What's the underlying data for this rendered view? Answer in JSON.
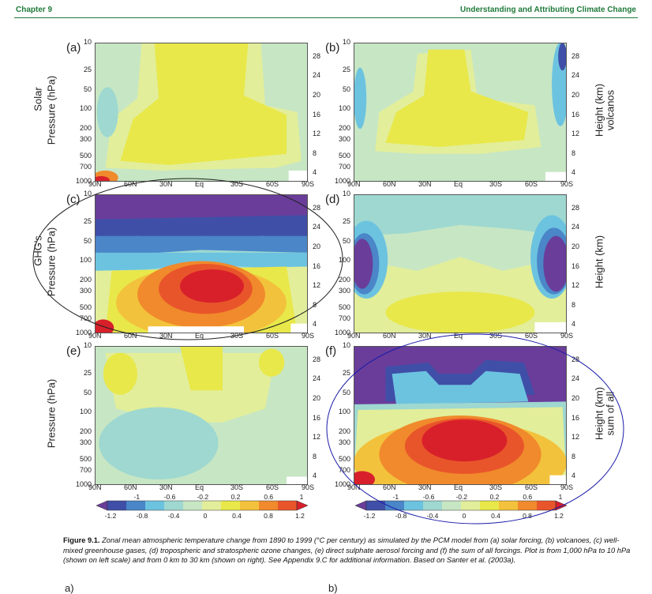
{
  "header": {
    "left": "Chapter 9",
    "right": "Understanding and Attributing Climate Change"
  },
  "panels": [
    {
      "id": "a",
      "label": "(a)",
      "left_title": "Solar",
      "left_axis": "Pressure (hPa)",
      "right_axis": "",
      "right_title": ""
    },
    {
      "id": "b",
      "label": "(b)",
      "left_title": "",
      "left_axis": "",
      "right_axis": "Height (km)",
      "right_title": "volcanos"
    },
    {
      "id": "c",
      "label": "(c)",
      "left_title": "GHG's",
      "left_axis": "Pressure (hPa)",
      "right_axis": "",
      "right_title": ""
    },
    {
      "id": "d",
      "label": "(d)",
      "left_title": "",
      "left_axis": "",
      "right_axis": "Height (km)",
      "right_title": ""
    },
    {
      "id": "e",
      "label": "(e)",
      "left_title": "",
      "left_axis": "Pressure (hPa)",
      "right_axis": "",
      "right_title": ""
    },
    {
      "id": "f",
      "label": "(f)",
      "left_title": "",
      "left_axis": "",
      "right_axis": "Height (km)",
      "right_title": "sum of all"
    }
  ],
  "axes": {
    "pressure_ticks": [
      "10",
      "25",
      "50",
      "100",
      "200",
      "300",
      "500",
      "700",
      "1000"
    ],
    "height_ticks": [
      "28",
      "24",
      "20",
      "16",
      "12",
      "8",
      "4"
    ],
    "lat_ticks": [
      "90N",
      "60N",
      "30N",
      "Eq",
      "30S",
      "60S",
      "90S"
    ]
  },
  "colorbar": {
    "top_labels": [
      "-1",
      "-0.6",
      "-0.2",
      "0.2",
      "0.6",
      "1"
    ],
    "bottom_labels": [
      "-1.2",
      "-0.8",
      "-0.4",
      "0",
      "0.4",
      "0.8",
      "1.2"
    ],
    "colors": [
      "#6a3d9a",
      "#3f4fa8",
      "#4a86c8",
      "#6cc3e0",
      "#9ed8d0",
      "#c7e6c4",
      "#e2ee9a",
      "#e8e84a",
      "#f3c23c",
      "#f08a2c",
      "#e9552a",
      "#d8202b"
    ]
  },
  "caption": {
    "lead": "Figure 9.1.",
    "text": "Zonal mean atmospheric temperature change from 1890 to 1999 (°C per century) as simulated by the PCM model from (a) solar forcing, (b) volcanoes, (c) well-mixed greenhouse gases, (d) tropospheric and stratospheric ozone changes, (e) direct sulphate aerosol forcing and (f) the sum of all forcings. Plot is from 1,000 hPa to 10 hPa (shown on left scale) and from 0 km to 30 km (shown on right). See Appendix 9.C for additional information. Based on Santer et al. (2003a)."
  },
  "next_labels": {
    "left": "a)",
    "right": "b)"
  }
}
